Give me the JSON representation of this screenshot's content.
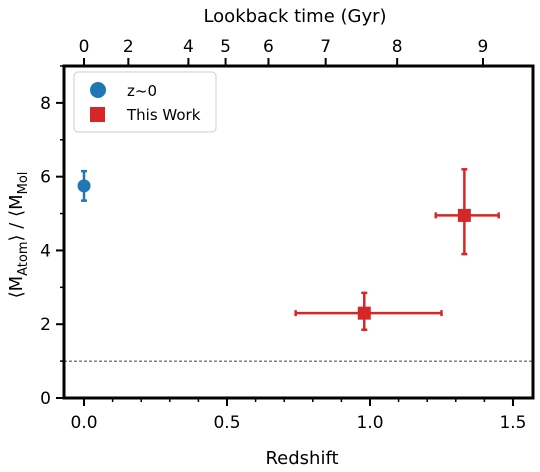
{
  "chart_data": {
    "type": "scatter",
    "xlabel": "Redshift",
    "ylabel_main": "⟨M",
    "ylabel_sub1": "Atom",
    "ylabel_mid": "⟩ / ⟨M",
    "ylabel_sub2": "Mol",
    "top_xlabel": "Lookback time (Gyr)",
    "xlim": [
      -0.07,
      1.57
    ],
    "ylim": [
      0,
      9
    ],
    "x_ticks": [
      "0.0",
      "0.5",
      "1.0",
      "1.5"
    ],
    "x_tick_values": [
      0,
      0.5,
      1.0,
      1.5
    ],
    "y_ticks": [
      "0",
      "2",
      "4",
      "6",
      "8"
    ],
    "y_tick_values": [
      0,
      2,
      4,
      6,
      8
    ],
    "top_ticks": [
      {
        "label": "0",
        "z": 0.0
      },
      {
        "label": "2",
        "z": 0.155
      },
      {
        "label": "4",
        "z": 0.365
      },
      {
        "label": "5",
        "z": 0.495
      },
      {
        "label": "6",
        "z": 0.645
      },
      {
        "label": "7",
        "z": 0.845
      },
      {
        "label": "8",
        "z": 1.095
      },
      {
        "label": "9",
        "z": 1.395
      }
    ],
    "reference_line": 1.0,
    "legend_position": "top-left",
    "series": [
      {
        "name": "z~0",
        "marker": "circle",
        "color": "#1f77b4",
        "points": [
          {
            "x": 0.0,
            "y": 5.75,
            "yerr_low": 0.4,
            "yerr_high": 0.4
          }
        ]
      },
      {
        "name": "This Work",
        "marker": "square",
        "color": "#d62728",
        "points": [
          {
            "x": 0.98,
            "y": 2.3,
            "xerr_low": 0.24,
            "xerr_high": 0.27,
            "yerr_low": 0.45,
            "yerr_high": 0.55
          },
          {
            "x": 1.33,
            "y": 4.95,
            "xerr_low": 0.1,
            "xerr_high": 0.12,
            "yerr_low": 1.05,
            "yerr_high": 1.25
          }
        ]
      }
    ]
  }
}
